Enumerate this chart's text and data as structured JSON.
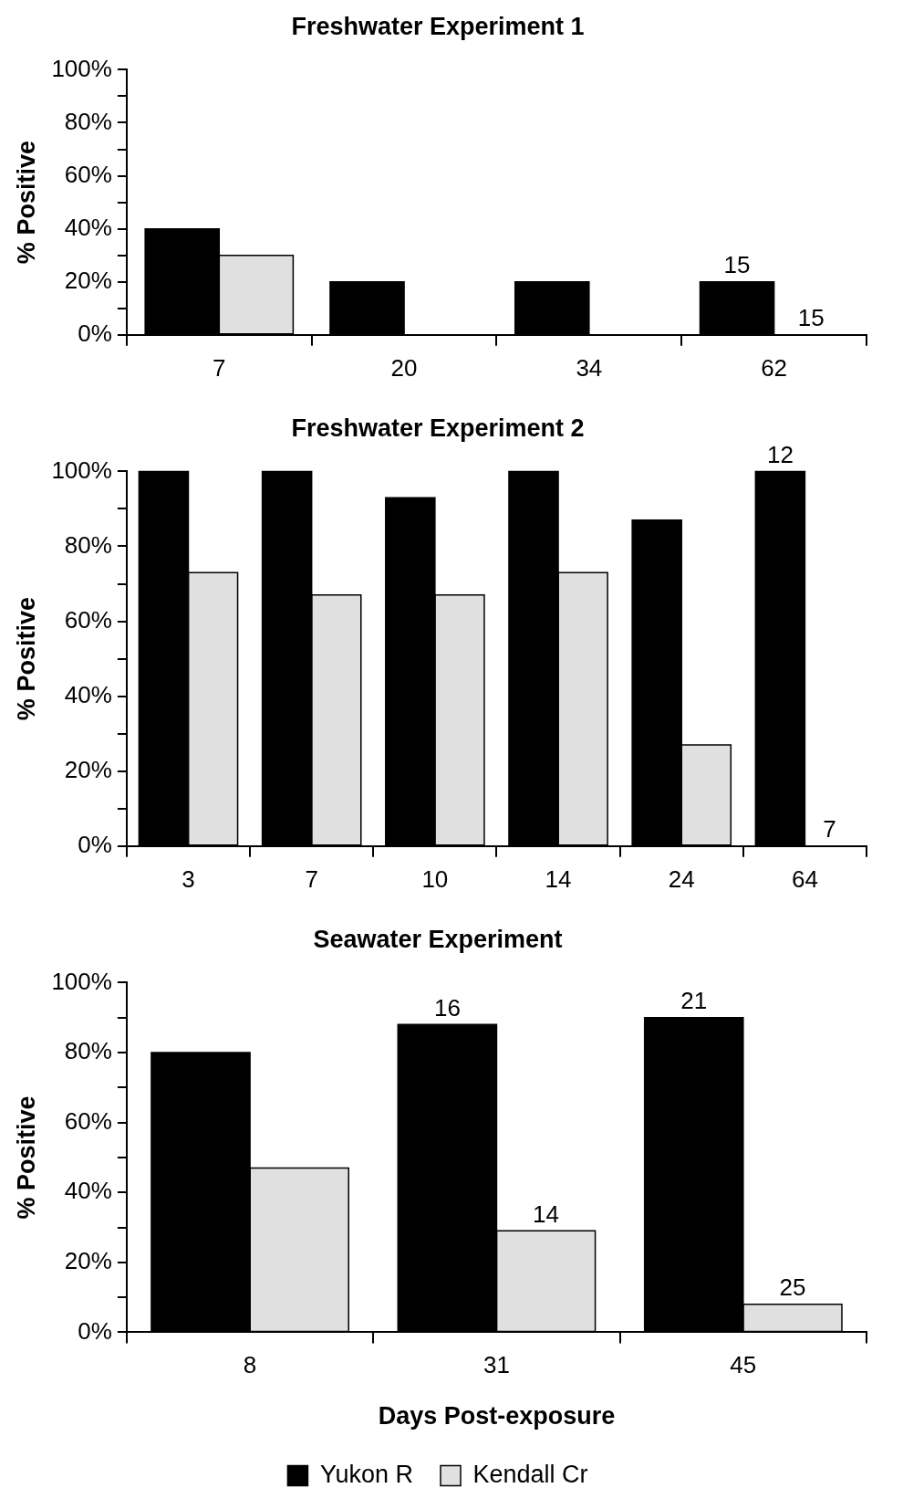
{
  "chart_data": [
    {
      "type": "bar",
      "title": "Freshwater Experiment 1",
      "ylabel": "% Positive",
      "categories": [
        "7",
        "20",
        "34",
        "62"
      ],
      "grid": false,
      "legend": false,
      "series": [
        {
          "color": "#000000",
          "values": [
            40,
            20,
            20,
            20
          ]
        },
        {
          "color": "#e0e0e0",
          "values": [
            30,
            0,
            0,
            0
          ]
        }
      ],
      "annotations": [
        {
          "text": "15",
          "x": "62",
          "y": 20
        },
        {
          "text": "15",
          "x": "62",
          "y": 0
        }
      ],
      "ylim": [
        0,
        100
      ],
      "yticks": [
        {
          "value": 0,
          "label": "0%"
        },
        {
          "value": 10,
          "label": null
        },
        {
          "value": 20,
          "label": "20%"
        },
        {
          "value": 30,
          "label": null
        },
        {
          "value": 40,
          "label": "40%"
        },
        {
          "value": 50,
          "label": null
        },
        {
          "value": 60,
          "label": "60%"
        },
        {
          "value": 70,
          "label": null
        },
        {
          "value": 80,
          "label": "80%"
        },
        {
          "value": 90,
          "label": null
        },
        {
          "value": 100,
          "label": "100%"
        }
      ]
    },
    {
      "type": "bar",
      "title": "Freshwater Experiment 2",
      "ylabel": "% Positive",
      "categories": [
        "3",
        "7",
        "10",
        "14",
        "24",
        "64"
      ],
      "grid": false,
      "legend": false,
      "series": [
        {
          "color": "#000000",
          "values": [
            100,
            100,
            93,
            100,
            87,
            100
          ]
        },
        {
          "color": "#e0e0e0",
          "values": [
            73,
            67,
            67,
            73,
            27,
            0
          ]
        }
      ],
      "annotations": [
        {
          "text": "12",
          "x": "64",
          "y": 100
        },
        {
          "text": "7",
          "x": "64",
          "y": 0
        }
      ],
      "ylim": [
        0,
        100
      ],
      "yticks": [
        {
          "value": 0,
          "label": "0%"
        },
        {
          "value": 10,
          "label": null
        },
        {
          "value": 20,
          "label": "20%"
        },
        {
          "value": 30,
          "label": null
        },
        {
          "value": 40,
          "label": "40%"
        },
        {
          "value": 50,
          "label": null
        },
        {
          "value": 60,
          "label": "60%"
        },
        {
          "value": 70,
          "label": null
        },
        {
          "value": 80,
          "label": "80%"
        },
        {
          "value": 90,
          "label": null
        },
        {
          "value": 100,
          "label": "100%"
        }
      ]
    },
    {
      "type": "bar",
      "title": "Seawater Experiment",
      "ylabel": "% Positive",
      "xlabel": "Days Post-exposure",
      "categories": [
        "8",
        "31",
        "45"
      ],
      "grid": false,
      "legend": "bottom",
      "series": [
        {
          "name": "Yukon R",
          "color": "#000000",
          "values": [
            80,
            88,
            90
          ]
        },
        {
          "name": "Kendall Cr",
          "color": "#e0e0e0",
          "values": [
            47,
            29,
            8
          ]
        }
      ],
      "annotations": [
        {
          "text": "16",
          "x": "31",
          "y": 88
        },
        {
          "text": "21",
          "x": "45",
          "y": 90
        },
        {
          "text": "14",
          "x": "31",
          "y": 29
        },
        {
          "text": "25",
          "x": "45",
          "y": 8
        }
      ],
      "ylim": [
        0,
        100
      ],
      "yticks": [
        {
          "value": 0,
          "label": "0%"
        },
        {
          "value": 10,
          "label": null
        },
        {
          "value": 20,
          "label": "20%"
        },
        {
          "value": 30,
          "label": null
        },
        {
          "value": 40,
          "label": "40%"
        },
        {
          "value": 50,
          "label": null
        },
        {
          "value": 60,
          "label": "60%"
        },
        {
          "value": 70,
          "label": null
        },
        {
          "value": 80,
          "label": "80%"
        },
        {
          "value": 90,
          "label": null
        },
        {
          "value": 100,
          "label": "100%"
        }
      ]
    }
  ]
}
